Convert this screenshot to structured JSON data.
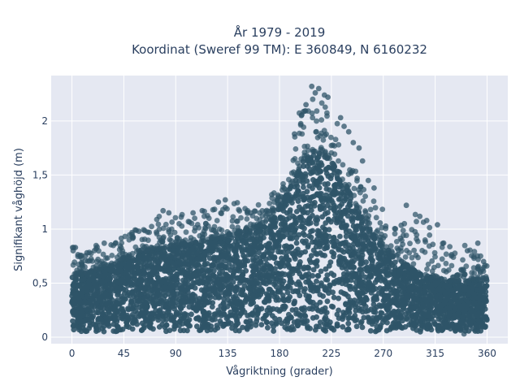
{
  "chart_data": {
    "type": "scatter",
    "title_lines": [
      "År 1979 - 2019",
      "Koordinat (Sweref 99 TM): E 360849, N 6160232"
    ],
    "xlabel": "Vågriktning (grader)",
    "ylabel": "Signifikant våghöjd (m)",
    "xlim": [
      -18,
      378
    ],
    "ylim": [
      -0.06,
      2.42
    ],
    "x_ticks": [
      0,
      45,
      90,
      135,
      180,
      225,
      270,
      315,
      360
    ],
    "x_tick_labels": [
      "0",
      "45",
      "90",
      "135",
      "180",
      "225",
      "270",
      "315",
      "360"
    ],
    "y_ticks": [
      0,
      0.5,
      1,
      1.5,
      2
    ],
    "y_tick_labels": [
      "0",
      "0,5",
      "1",
      "1,5",
      "2"
    ],
    "grid": true,
    "legend": "none",
    "marker_color": "#2f5468",
    "plot_bgcolor": "#e5e8f2",
    "envelope": {
      "direction": [
        0,
        10,
        20,
        30,
        40,
        50,
        60,
        70,
        80,
        90,
        100,
        110,
        120,
        130,
        140,
        150,
        160,
        170,
        180,
        190,
        200,
        210,
        220,
        230,
        240,
        250,
        260,
        270,
        280,
        290,
        300,
        310,
        320,
        330,
        340,
        350,
        360
      ],
      "dense_max_height": [
        0.55,
        0.58,
        0.62,
        0.66,
        0.7,
        0.74,
        0.78,
        0.81,
        0.83,
        0.85,
        0.87,
        0.88,
        0.9,
        0.92,
        0.95,
        0.98,
        1.02,
        1.08,
        1.2,
        1.4,
        1.62,
        1.72,
        1.68,
        1.55,
        1.35,
        1.15,
        0.98,
        0.85,
        0.75,
        0.67,
        0.6,
        0.56,
        0.54,
        0.52,
        0.52,
        0.53,
        0.55
      ],
      "outlier_max_height": [
        0.85,
        0.78,
        0.85,
        0.9,
        0.95,
        1.0,
        1.05,
        1.1,
        1.15,
        1.18,
        1.15,
        1.18,
        1.2,
        1.25,
        1.28,
        1.2,
        1.22,
        1.28,
        1.4,
        1.75,
        2.25,
        2.3,
        2.2,
        2.0,
        1.75,
        1.45,
        1.28,
        1.2,
        1.1,
        1.05,
        1.22,
        1.05,
        1.04,
        0.8,
        0.85,
        0.88,
        0.7
      ],
      "min_height": 0.05
    },
    "notable_points": [
      {
        "x": 208,
        "y": 2.32
      },
      {
        "x": 214,
        "y": 2.3
      },
      {
        "x": 211,
        "y": 2.26
      },
      {
        "x": 219,
        "y": 2.24
      },
      {
        "x": 222,
        "y": 2.22
      },
      {
        "x": 203,
        "y": 2.15
      },
      {
        "x": 199,
        "y": 2.05
      },
      {
        "x": 233,
        "y": 2.03
      },
      {
        "x": 236,
        "y": 1.95
      },
      {
        "x": 193,
        "y": 1.88
      },
      {
        "x": 240,
        "y": 1.9
      },
      {
        "x": 244,
        "y": 1.8
      },
      {
        "x": 249,
        "y": 1.75
      },
      {
        "x": 252,
        "y": 1.63
      },
      {
        "x": 257,
        "y": 1.45
      },
      {
        "x": 262,
        "y": 1.38
      },
      {
        "x": 290,
        "y": 1.22
      },
      {
        "x": 317,
        "y": 1.04
      },
      {
        "x": 3,
        "y": 0.83
      },
      {
        "x": 1,
        "y": 0.8
      },
      {
        "x": 13,
        "y": 0.78
      },
      {
        "x": 28,
        "y": 0.87
      },
      {
        "x": 58,
        "y": 0.98
      },
      {
        "x": 79,
        "y": 1.17
      },
      {
        "x": 84,
        "y": 1.15
      },
      {
        "x": 105,
        "y": 1.15
      },
      {
        "x": 113,
        "y": 1.17
      },
      {
        "x": 127,
        "y": 1.25
      },
      {
        "x": 133,
        "y": 1.27
      },
      {
        "x": 155,
        "y": 1.15
      },
      {
        "x": 343,
        "y": 0.8
      },
      {
        "x": 352,
        "y": 0.87
      },
      {
        "x": 357,
        "y": 0.7
      },
      {
        "x": 340,
        "y": 0.03
      }
    ]
  }
}
